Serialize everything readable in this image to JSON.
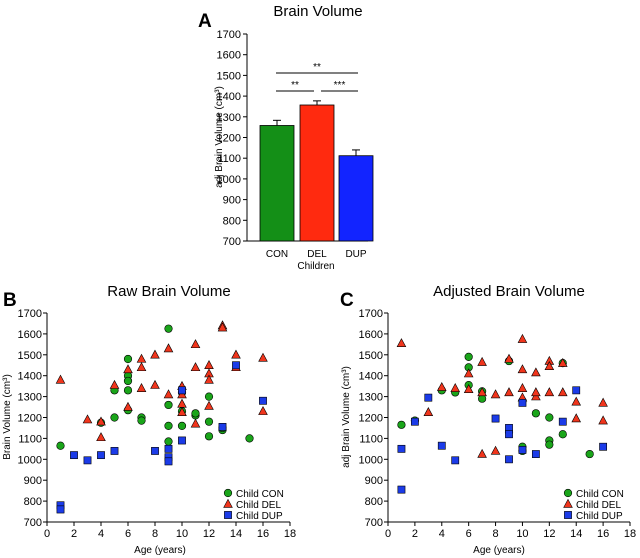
{
  "colors": {
    "CON": "#1aa51a",
    "DEL": "#f0351c",
    "DUP": "#1b3be8",
    "bar_CON": "#148f17",
    "bar_DEL": "#ff2a0f",
    "bar_DUP": "#1224ff"
  },
  "chart_data": [
    {
      "panel": "A",
      "type": "bar",
      "title": "Brain Volume",
      "xlabel": "Children",
      "ylabel": "adj Brain Volume (cm³)",
      "ylim": [
        700,
        1700
      ],
      "yticks": [
        "700",
        "800",
        "900",
        "1000",
        "1100",
        "1200",
        "1300",
        "1400",
        "1500",
        "1600",
        "1700"
      ],
      "categories": [
        "CON",
        "DEL",
        "DUP"
      ],
      "values": [
        1258,
        1357,
        1112
      ],
      "errors": [
        25,
        20,
        28
      ],
      "significance": [
        {
          "between": [
            "CON",
            "DUP"
          ],
          "label": "**"
        },
        {
          "between": [
            "CON",
            "DEL"
          ],
          "label": "**"
        },
        {
          "between": [
            "DEL",
            "DUP"
          ],
          "label": "***"
        }
      ]
    },
    {
      "panel": "B",
      "type": "scatter",
      "title": "Raw Brain Volume",
      "xlabel": "Age (years)",
      "ylabel": "Brain Volume (cm³)",
      "xlim": [
        0,
        18
      ],
      "ylim": [
        700,
        1700
      ],
      "xticks": [
        "0",
        "2",
        "4",
        "6",
        "8",
        "10",
        "12",
        "14",
        "16",
        "18"
      ],
      "yticks": [
        "700",
        "800",
        "900",
        "1000",
        "1100",
        "1200",
        "1300",
        "1400",
        "1500",
        "1600",
        "1700"
      ],
      "legend": [
        "Child CON",
        "Child DEL",
        "Child DUP"
      ],
      "legend_position": "bottom-right",
      "series": [
        {
          "name": "Child CON",
          "marker": "circle",
          "x": [
            1,
            4,
            5,
            5,
            6,
            6,
            6,
            6,
            6,
            7,
            7,
            9,
            9,
            9,
            9,
            10,
            10,
            10,
            11,
            11,
            12,
            12,
            12,
            13,
            13,
            15
          ],
          "y": [
            1065,
            1175,
            1200,
            1330,
            1480,
            1400,
            1375,
            1330,
            1235,
            1200,
            1185,
            1625,
            1260,
            1160,
            1085,
            1160,
            1230,
            1320,
            1210,
            1220,
            1300,
            1180,
            1110,
            1140,
            1150,
            1100
          ]
        },
        {
          "name": "Child DEL",
          "marker": "triangle",
          "x": [
            1,
            3,
            4,
            4,
            5,
            6,
            6,
            7,
            7,
            7,
            8,
            8,
            9,
            9,
            10,
            10,
            10,
            10,
            11,
            11,
            11,
            12,
            12,
            12,
            12,
            13,
            13,
            14,
            14,
            16,
            16
          ],
          "y": [
            1380,
            1190,
            1180,
            1105,
            1355,
            1430,
            1250,
            1480,
            1440,
            1340,
            1500,
            1355,
            1530,
            1310,
            1350,
            1310,
            1265,
            1225,
            1550,
            1440,
            1170,
            1450,
            1410,
            1380,
            1255,
            1640,
            1630,
            1500,
            1440,
            1485,
            1230
          ]
        },
        {
          "name": "Child DUP",
          "marker": "square",
          "x": [
            1,
            1,
            2,
            3,
            4,
            5,
            8,
            9,
            9,
            9,
            10,
            10,
            13,
            14,
            16
          ],
          "y": [
            780,
            760,
            1020,
            995,
            1020,
            1040,
            1040,
            1050,
            1010,
            990,
            1330,
            1090,
            1155,
            1450,
            1280
          ]
        }
      ]
    },
    {
      "panel": "C",
      "type": "scatter",
      "title": "Adjusted Brain Volume",
      "xlabel": "Age (years)",
      "ylabel": "adj Brain Volume (cm³)",
      "xlim": [
        0,
        18
      ],
      "ylim": [
        700,
        1700
      ],
      "xticks": [
        "0",
        "2",
        "4",
        "6",
        "8",
        "10",
        "12",
        "14",
        "16",
        "18"
      ],
      "yticks": [
        "700",
        "800",
        "900",
        "1000",
        "1100",
        "1200",
        "1300",
        "1400",
        "1500",
        "1600",
        "1700"
      ],
      "legend": [
        "Child CON",
        "Child DEL",
        "Child DUP"
      ],
      "legend_position": "bottom-right",
      "series": [
        {
          "name": "Child CON",
          "marker": "circle",
          "x": [
            1,
            2,
            4,
            5,
            6,
            6,
            6,
            7,
            7,
            9,
            9,
            10,
            10,
            10,
            11,
            12,
            12,
            12,
            13,
            13,
            15
          ],
          "y": [
            1165,
            1185,
            1330,
            1320,
            1490,
            1440,
            1355,
            1325,
            1290,
            1470,
            1130,
            1280,
            1060,
            1040,
            1220,
            1090,
            1070,
            1200,
            1120,
            1460,
            1025
          ]
        },
        {
          "name": "Child DEL",
          "marker": "triangle",
          "x": [
            1,
            3,
            4,
            5,
            6,
            6,
            7,
            7,
            7,
            8,
            8,
            9,
            9,
            10,
            10,
            10,
            10,
            11,
            11,
            11,
            12,
            12,
            12,
            13,
            13,
            14,
            14,
            16,
            16
          ],
          "y": [
            1555,
            1225,
            1345,
            1340,
            1335,
            1410,
            1465,
            1320,
            1025,
            1310,
            1040,
            1480,
            1320,
            1575,
            1430,
            1340,
            1295,
            1415,
            1300,
            1320,
            1470,
            1445,
            1320,
            1460,
            1320,
            1275,
            1195,
            1270,
            1185
          ]
        },
        {
          "name": "Child DUP",
          "marker": "square",
          "x": [
            1,
            1,
            2,
            3,
            4,
            5,
            8,
            9,
            9,
            9,
            10,
            10,
            11,
            13,
            14,
            16
          ],
          "y": [
            1050,
            855,
            1180,
            1295,
            1065,
            995,
            1195,
            1000,
            1150,
            1120,
            1270,
            1045,
            1025,
            1180,
            1330,
            1060
          ]
        }
      ]
    }
  ]
}
